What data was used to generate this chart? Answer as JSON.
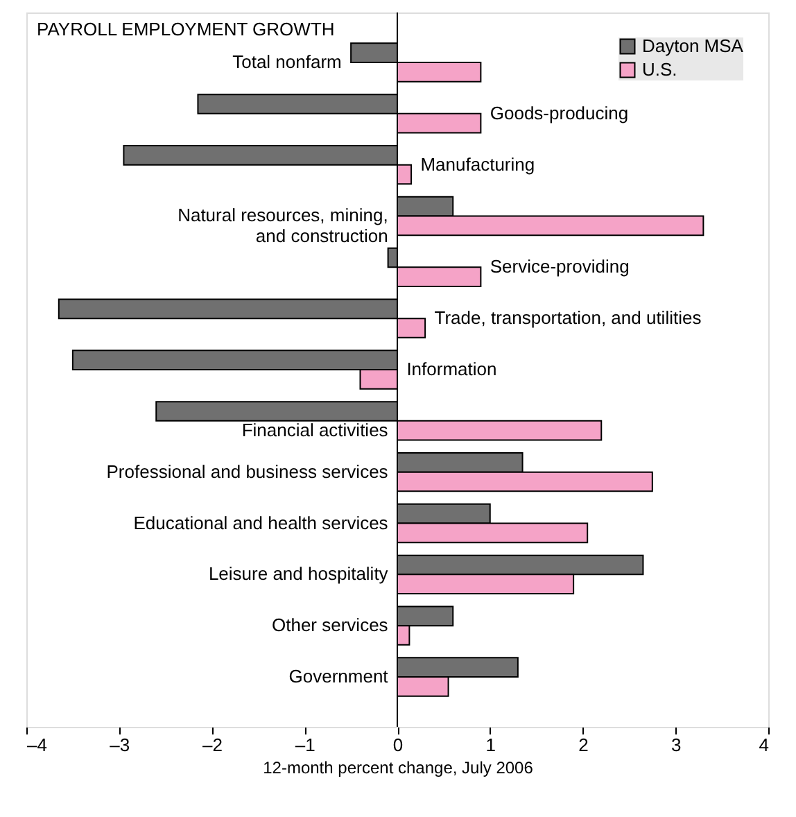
{
  "chart_data": {
    "type": "bar",
    "orientation": "horizontal",
    "title": "PAYROLL EMPLOYMENT GROWTH",
    "xlabel": "12-month percent change, July 2006",
    "categories": [
      "Total nonfarm",
      "Goods-producing",
      "Manufacturing",
      "Natural resources, mining,\nand construction",
      "Service-providing",
      "Trade, transportation, and utilities",
      "Information",
      "Financial activities",
      "Professional and business services",
      "Educational and health services",
      "Leisure and hospitality",
      "Other services",
      "Government"
    ],
    "series": [
      {
        "name": "Dayton MSA",
        "color": "#707070",
        "values": [
          -0.5,
          -2.15,
          -2.95,
          0.6,
          -0.1,
          -3.65,
          -3.5,
          -2.6,
          1.35,
          1.0,
          2.65,
          0.6,
          1.3
        ]
      },
      {
        "name": "U.S.",
        "color": "#f5a3c7",
        "values": [
          0.9,
          0.9,
          0.15,
          3.3,
          0.9,
          0.3,
          -0.4,
          2.2,
          2.75,
          2.05,
          1.9,
          0.13,
          0.55
        ]
      }
    ],
    "xlim": [
      -4,
      4
    ],
    "xticks": [
      {
        "value": -4,
        "label": "–4"
      },
      {
        "value": -3,
        "label": "–3"
      },
      {
        "value": -2,
        "label": "–2"
      },
      {
        "value": -1,
        "label": "–1"
      },
      0,
      1,
      2,
      3,
      4
    ],
    "grid": false,
    "legend": "top right"
  }
}
